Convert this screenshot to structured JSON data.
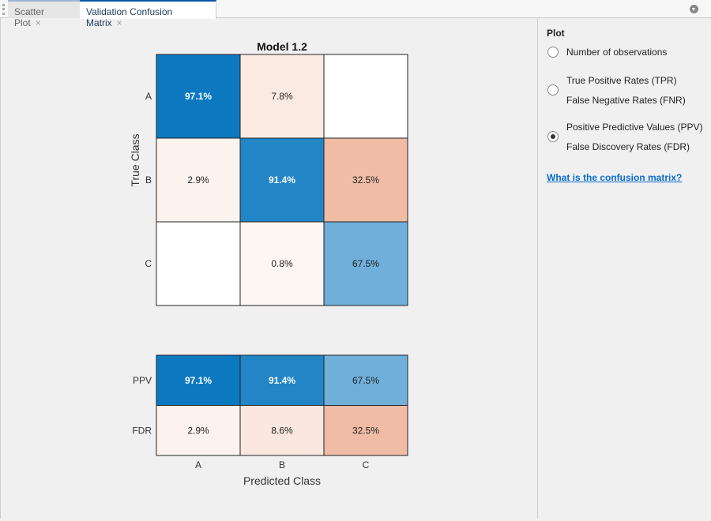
{
  "tabs": [
    {
      "label": "Scatter Plot",
      "close": "×"
    },
    {
      "label": "Validation Confusion Matrix",
      "close": "×"
    }
  ],
  "panel": {
    "title": "Plot",
    "options": [
      {
        "lines": [
          "Number of observations"
        ],
        "selected": false
      },
      {
        "lines": [
          "True Positive Rates (TPR)",
          "False Negative Rates (FNR)"
        ],
        "selected": false
      },
      {
        "lines": [
          "Positive Predictive Values (PPV)",
          "False Discovery Rates (FDR)"
        ],
        "selected": true
      }
    ],
    "link": "What is the confusion matrix?"
  },
  "chart_data": {
    "type": "heatmap",
    "title": "Model 1.2",
    "xlabel": "Predicted Class",
    "ylabel": "True Class",
    "classes": [
      "A",
      "B",
      "C"
    ],
    "matrix": [
      [
        97.1,
        7.8,
        null
      ],
      [
        2.9,
        91.4,
        32.5
      ],
      [
        null,
        0.8,
        67.5
      ]
    ],
    "summary_rows": [
      {
        "label": "PPV",
        "values": [
          97.1,
          91.4,
          67.5
        ]
      },
      {
        "label": "FDR",
        "values": [
          2.9,
          8.6,
          32.5
        ]
      }
    ],
    "colors": {
      "diagonal": "#0072bd",
      "off_diagonal": "#d95319"
    }
  }
}
